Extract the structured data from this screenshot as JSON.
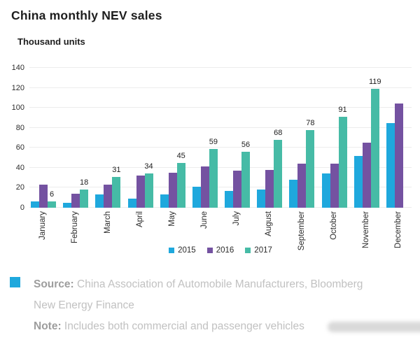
{
  "page": {
    "title": "China monthly NEV sales",
    "units_label": "Thousand units"
  },
  "chart_data": {
    "type": "bar",
    "title": "China monthly NEV sales",
    "ylabel": "Thousand units",
    "categories": [
      "January",
      "February",
      "March",
      "April",
      "May",
      "June",
      "July",
      "August",
      "September",
      "October",
      "November",
      "December"
    ],
    "series": [
      {
        "name": "2015",
        "color": "#1FA8DD",
        "values": [
          6,
          5,
          13,
          9,
          13,
          21,
          17,
          18,
          28,
          34,
          52,
          85
        ]
      },
      {
        "name": "2016",
        "color": "#7452A1",
        "values": [
          23,
          14,
          23,
          32,
          35,
          41,
          37,
          38,
          44,
          44,
          65,
          104
        ]
      },
      {
        "name": "2017",
        "color": "#46BBA6",
        "values": [
          6,
          18,
          31,
          34,
          45,
          59,
          56,
          68,
          78,
          91,
          119,
          null
        ]
      }
    ],
    "data_labels_series": "2017",
    "data_labels": [
      6,
      18,
      31,
      34,
      45,
      59,
      56,
      68,
      78,
      91,
      119,
      null
    ],
    "ylim": [
      0,
      140
    ],
    "yticks": [
      0,
      20,
      40,
      60,
      80,
      100,
      120,
      140
    ],
    "grid": true,
    "legend_position": "bottom-center"
  },
  "footer": {
    "source_label": "Source:",
    "source_line1": "China Association of Automobile Manufacturers, Bloomberg",
    "source_line2": "New Energy Finance",
    "note_label": "Note:",
    "note_text": "Includes both commercial and passenger vehicles",
    "accent_color": "#1FA8DD"
  }
}
